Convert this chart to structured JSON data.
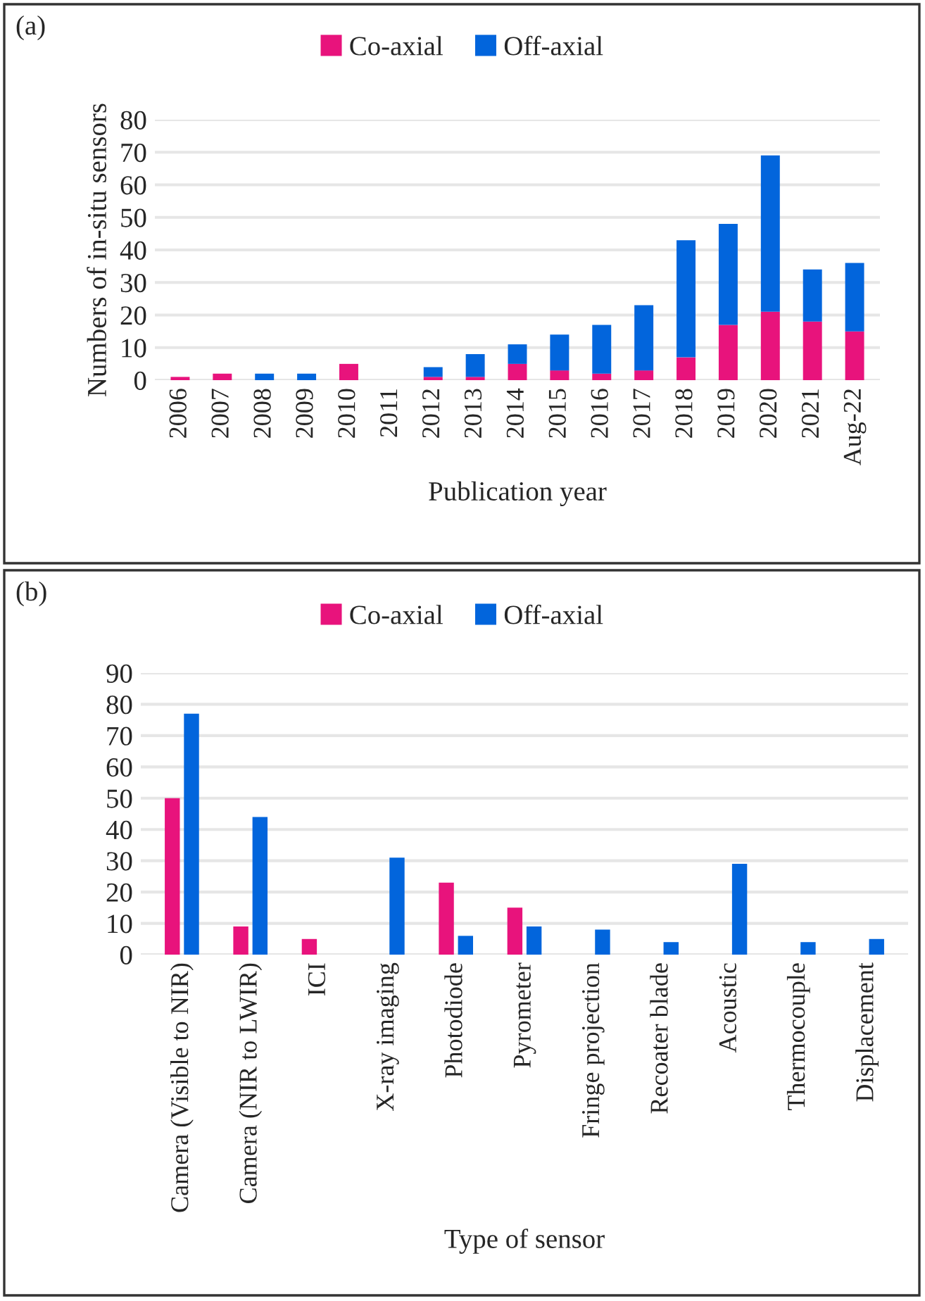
{
  "chart_data": [
    {
      "type": "bar",
      "stacked": true,
      "xlabel": "Publication year",
      "ylabel": "Numbers of in-situ sensors",
      "annotations": [
        "(a)"
      ],
      "categories": [
        "2006",
        "2007",
        "2008",
        "2009",
        "2010",
        "2011",
        "2012",
        "2013",
        "2014",
        "2015",
        "2016",
        "2017",
        "2018",
        "2019",
        "2020",
        "2021",
        "Aug-22"
      ],
      "series": [
        {
          "name": "Co-axial",
          "color": "#e8137c",
          "values": [
            1,
            2,
            null,
            null,
            5,
            null,
            1,
            1,
            5,
            3,
            2,
            3,
            7,
            17,
            21,
            18,
            15
          ]
        },
        {
          "name": "Off-axial",
          "color": "#0265dc",
          "values": [
            null,
            null,
            2,
            2,
            null,
            null,
            3,
            7,
            6,
            11,
            15,
            20,
            36,
            31,
            48,
            16,
            21
          ]
        }
      ],
      "ylim": [
        0,
        80
      ],
      "yticks": [
        0,
        10,
        20,
        30,
        40,
        50,
        60,
        70,
        80
      ],
      "grid": "y",
      "legend": "top"
    },
    {
      "type": "bar",
      "xlabel": "Type of sensor",
      "annotations": [
        "(b)"
      ],
      "categories": [
        "Camera (Visible to NIR)",
        "Camera (NIR to LWIR)",
        "ICI",
        "X-ray imaging",
        "Photodiode",
        "Pyrometer",
        "Fringe projection",
        "Recoater blade",
        "Acoustic",
        "Thermocouple",
        "Displacement"
      ],
      "series": [
        {
          "name": "Co-axial",
          "color": "#e8137c",
          "values": [
            50,
            9,
            5,
            null,
            23,
            15,
            null,
            null,
            null,
            null,
            null
          ]
        },
        {
          "name": "Off-axial",
          "color": "#0265dc",
          "values": [
            77,
            44,
            null,
            31,
            6,
            9,
            8,
            4,
            29,
            4,
            5
          ]
        }
      ],
      "ylim": [
        0,
        90
      ],
      "yticks": [
        0,
        10,
        20,
        30,
        40,
        50,
        60,
        70,
        80,
        90
      ],
      "grid": "y",
      "legend": "top"
    }
  ]
}
